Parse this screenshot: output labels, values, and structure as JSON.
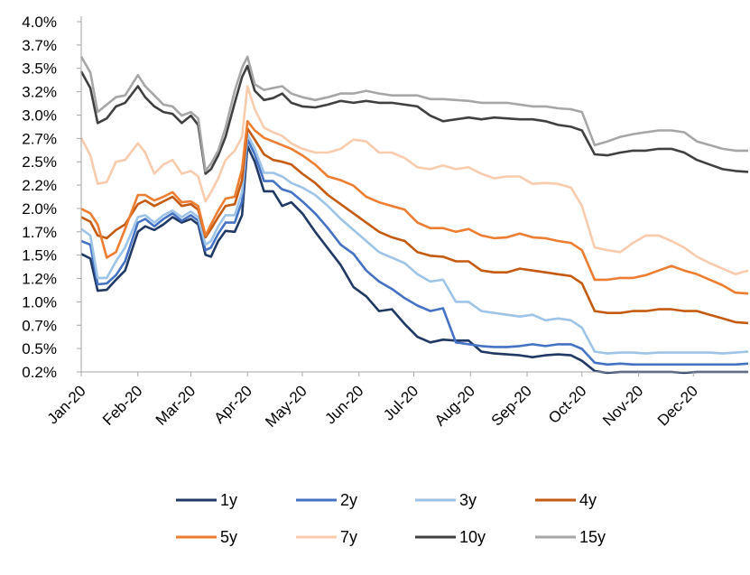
{
  "chart_data": {
    "type": "line",
    "title": "",
    "xlabel": "",
    "ylabel": "",
    "ylim": [
      0.2,
      4.0
    ],
    "y_ticks": [
      "4.0%",
      "3.7%",
      "3.5%",
      "3.2%",
      "3.0%",
      "2.7%",
      "2.5%",
      "2.2%",
      "2.0%",
      "1.7%",
      "1.5%",
      "1.2%",
      "1.0%",
      "0.7%",
      "0.5%",
      "0.2%"
    ],
    "x_ticks": [
      "Jan-20",
      "Feb-20",
      "Mar-20",
      "Apr-20",
      "May-20",
      "Jun-20",
      "Jul-20",
      "Aug-20",
      "Sep-20",
      "Oct-20",
      "Nov-20",
      "Dec-20"
    ],
    "grid": false,
    "legend_position": "bottom",
    "x": [
      "2020-01-01",
      "2020-01-06",
      "2020-01-10",
      "2020-01-15",
      "2020-01-20",
      "2020-01-25",
      "2020-02-01",
      "2020-02-05",
      "2020-02-10",
      "2020-02-15",
      "2020-02-20",
      "2020-02-25",
      "2020-03-01",
      "2020-03-05",
      "2020-03-09",
      "2020-03-12",
      "2020-03-16",
      "2020-03-20",
      "2020-03-25",
      "2020-03-29",
      "2020-04-01",
      "2020-04-05",
      "2020-04-10",
      "2020-04-15",
      "2020-04-20",
      "2020-04-25",
      "2020-05-01",
      "2020-05-08",
      "2020-05-15",
      "2020-05-22",
      "2020-05-29",
      "2020-06-05",
      "2020-06-12",
      "2020-06-19",
      "2020-06-26",
      "2020-07-03",
      "2020-07-10",
      "2020-07-17",
      "2020-07-24",
      "2020-07-31",
      "2020-08-07",
      "2020-08-14",
      "2020-08-21",
      "2020-08-28",
      "2020-09-04",
      "2020-09-11",
      "2020-09-18",
      "2020-09-25",
      "2020-10-01",
      "2020-10-08",
      "2020-10-15",
      "2020-10-22",
      "2020-10-29",
      "2020-11-05",
      "2020-11-12",
      "2020-11-19",
      "2020-11-26",
      "2020-12-03",
      "2020-12-10",
      "2020-12-17",
      "2020-12-24",
      "2020-12-31"
    ],
    "series": [
      {
        "name": "1y",
        "color": "#203864",
        "values": [
          1.48,
          1.43,
          1.08,
          1.09,
          1.2,
          1.3,
          1.72,
          1.78,
          1.74,
          1.8,
          1.88,
          1.82,
          1.86,
          1.8,
          1.47,
          1.45,
          1.62,
          1.73,
          1.72,
          1.9,
          2.65,
          2.48,
          2.16,
          2.16,
          2.0,
          2.04,
          1.92,
          1.72,
          1.54,
          1.36,
          1.12,
          1.02,
          0.86,
          0.88,
          0.72,
          0.58,
          0.52,
          0.55,
          0.54,
          0.54,
          0.42,
          0.4,
          0.39,
          0.38,
          0.36,
          0.38,
          0.39,
          0.38,
          0.32,
          0.21,
          0.19,
          0.2,
          0.2,
          0.2,
          0.2,
          0.2,
          0.19,
          0.2,
          0.2,
          0.2,
          0.2,
          0.2
        ]
      },
      {
        "name": "2y",
        "color": "#4472c4",
        "values": [
          1.62,
          1.58,
          1.15,
          1.16,
          1.25,
          1.4,
          1.82,
          1.86,
          1.78,
          1.86,
          1.92,
          1.84,
          1.9,
          1.84,
          1.52,
          1.55,
          1.7,
          1.82,
          1.82,
          2.05,
          2.72,
          2.56,
          2.27,
          2.27,
          2.18,
          2.15,
          2.05,
          1.92,
          1.76,
          1.58,
          1.48,
          1.3,
          1.18,
          1.1,
          1.0,
          0.92,
          0.86,
          0.89,
          0.52,
          0.5,
          0.48,
          0.47,
          0.47,
          0.48,
          0.5,
          0.48,
          0.5,
          0.5,
          0.45,
          0.3,
          0.28,
          0.29,
          0.28,
          0.28,
          0.28,
          0.28,
          0.28,
          0.28,
          0.28,
          0.28,
          0.28,
          0.29
        ]
      },
      {
        "name": "3y",
        "color": "#9dc3e6",
        "values": [
          1.75,
          1.68,
          1.22,
          1.22,
          1.4,
          1.55,
          1.88,
          1.9,
          1.82,
          1.9,
          1.95,
          1.88,
          1.94,
          1.88,
          1.58,
          1.62,
          1.78,
          1.9,
          1.9,
          2.15,
          2.78,
          2.62,
          2.36,
          2.36,
          2.32,
          2.25,
          2.2,
          2.12,
          2.0,
          1.86,
          1.74,
          1.62,
          1.5,
          1.44,
          1.38,
          1.26,
          1.18,
          1.2,
          0.96,
          0.96,
          0.86,
          0.84,
          0.82,
          0.8,
          0.82,
          0.76,
          0.78,
          0.76,
          0.68,
          0.42,
          0.4,
          0.41,
          0.41,
          0.4,
          0.41,
          0.41,
          0.41,
          0.41,
          0.41,
          0.4,
          0.41,
          0.42
        ]
      },
      {
        "name": "4y",
        "color": "#c55a11",
        "values": [
          1.88,
          1.83,
          1.68,
          1.65,
          1.74,
          1.8,
          2.02,
          2.06,
          2.0,
          2.05,
          2.1,
          2.0,
          2.02,
          1.96,
          1.66,
          1.75,
          1.88,
          2.0,
          2.02,
          2.28,
          2.84,
          2.72,
          2.56,
          2.5,
          2.48,
          2.45,
          2.35,
          2.25,
          2.12,
          2.02,
          1.92,
          1.82,
          1.72,
          1.66,
          1.62,
          1.5,
          1.46,
          1.45,
          1.4,
          1.4,
          1.3,
          1.28,
          1.28,
          1.32,
          1.3,
          1.28,
          1.26,
          1.24,
          1.16,
          0.86,
          0.84,
          0.84,
          0.86,
          0.86,
          0.88,
          0.88,
          0.86,
          0.86,
          0.82,
          0.78,
          0.74,
          0.73
        ]
      },
      {
        "name": "5y",
        "color": "#ed7d31",
        "values": [
          1.97,
          1.92,
          1.8,
          1.44,
          1.5,
          1.75,
          2.12,
          2.12,
          2.06,
          2.1,
          2.15,
          2.04,
          2.05,
          2.0,
          1.68,
          1.8,
          1.95,
          2.08,
          2.1,
          2.4,
          2.92,
          2.82,
          2.74,
          2.7,
          2.66,
          2.62,
          2.55,
          2.45,
          2.32,
          2.28,
          2.22,
          2.1,
          2.04,
          2.0,
          1.96,
          1.82,
          1.76,
          1.76,
          1.72,
          1.75,
          1.68,
          1.65,
          1.66,
          1.7,
          1.66,
          1.65,
          1.62,
          1.6,
          1.52,
          1.2,
          1.2,
          1.22,
          1.22,
          1.25,
          1.3,
          1.35,
          1.3,
          1.26,
          1.2,
          1.14,
          1.06,
          1.05
        ]
      },
      {
        "name": "7y",
        "color": "#f8cbad",
        "values": [
          2.74,
          2.55,
          2.24,
          2.26,
          2.48,
          2.5,
          2.68,
          2.58,
          2.35,
          2.45,
          2.5,
          2.35,
          2.38,
          2.32,
          2.05,
          2.15,
          2.3,
          2.5,
          2.6,
          2.75,
          3.3,
          3.05,
          2.85,
          2.8,
          2.76,
          2.68,
          2.62,
          2.58,
          2.58,
          2.62,
          2.72,
          2.7,
          2.58,
          2.58,
          2.52,
          2.42,
          2.4,
          2.44,
          2.4,
          2.42,
          2.35,
          2.3,
          2.32,
          2.32,
          2.24,
          2.25,
          2.24,
          2.2,
          2.0,
          1.55,
          1.52,
          1.5,
          1.6,
          1.68,
          1.68,
          1.62,
          1.55,
          1.45,
          1.38,
          1.32,
          1.26,
          1.3
        ]
      },
      {
        "name": "10y",
        "color": "#404040",
        "values": [
          3.46,
          3.28,
          2.9,
          2.95,
          3.08,
          3.12,
          3.3,
          3.18,
          3.08,
          3.02,
          3.0,
          2.9,
          2.98,
          2.88,
          2.35,
          2.4,
          2.55,
          2.75,
          3.12,
          3.4,
          3.52,
          3.25,
          3.15,
          3.17,
          3.22,
          3.12,
          3.08,
          3.07,
          3.1,
          3.14,
          3.12,
          3.14,
          3.12,
          3.12,
          3.1,
          3.08,
          2.98,
          2.92,
          2.94,
          2.96,
          2.94,
          2.96,
          2.95,
          2.94,
          2.94,
          2.92,
          2.88,
          2.86,
          2.82,
          2.56,
          2.55,
          2.58,
          2.6,
          2.6,
          2.62,
          2.62,
          2.58,
          2.5,
          2.45,
          2.4,
          2.38,
          2.37
        ]
      },
      {
        "name": "15y",
        "color": "#a6a6a6",
        "values": [
          3.62,
          3.45,
          3.02,
          3.1,
          3.18,
          3.2,
          3.42,
          3.3,
          3.2,
          3.1,
          3.08,
          2.98,
          3.02,
          2.95,
          2.38,
          2.46,
          2.6,
          2.85,
          3.25,
          3.5,
          3.62,
          3.32,
          3.26,
          3.28,
          3.3,
          3.22,
          3.18,
          3.15,
          3.18,
          3.22,
          3.22,
          3.25,
          3.22,
          3.2,
          3.2,
          3.2,
          3.16,
          3.16,
          3.15,
          3.14,
          3.12,
          3.12,
          3.12,
          3.1,
          3.08,
          3.08,
          3.06,
          3.05,
          3.02,
          2.66,
          2.7,
          2.75,
          2.78,
          2.8,
          2.82,
          2.82,
          2.8,
          2.7,
          2.66,
          2.62,
          2.6,
          2.6
        ]
      }
    ]
  }
}
